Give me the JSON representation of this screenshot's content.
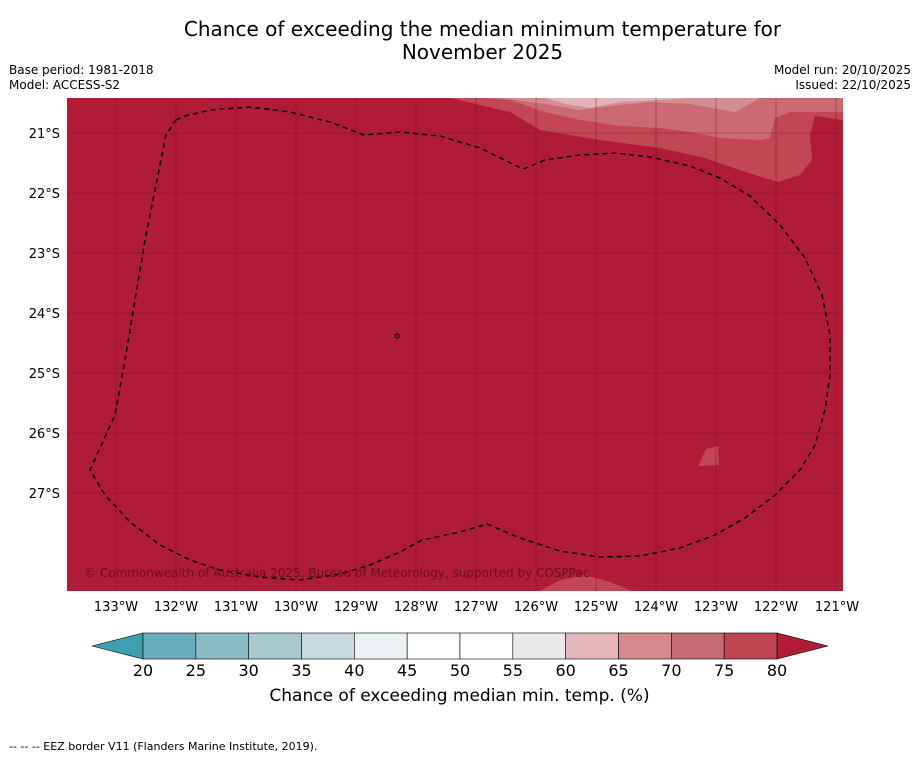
{
  "title_line1": "Chance of exceeding the median minimum temperature for",
  "title_line2": "November 2025",
  "base_period": "Base period: 1981-2018",
  "model": "Model: ACCESS-S2",
  "model_run": "Model run: 20/10/2025",
  "issued": "Issued: 22/10/2025",
  "copyright": "© Commonwealth of Australia 2025, Bureau of Meteorology, supported by COSPPac",
  "lat_labels": [
    "21°S",
    "22°S",
    "23°S",
    "24°S",
    "25°S",
    "26°S",
    "27°S"
  ],
  "lon_labels": [
    "133°W",
    "132°W",
    "131°W",
    "130°W",
    "129°W",
    "128°W",
    "127°W",
    "126°W",
    "125°W",
    "124°W",
    "123°W",
    "122°W",
    "121°W"
  ],
  "colorbar": {
    "ticks": [
      "20",
      "25",
      "30",
      "35",
      "40",
      "45",
      "50",
      "55",
      "60",
      "65",
      "70",
      "75",
      "80"
    ],
    "colors": [
      "#6aacbb",
      "#8bbac5",
      "#a8c9ce",
      "#c9dbde",
      "#ecf2f3",
      "#ffffff",
      "#ffffff",
      "#e9e9e9",
      "#e3b6bc",
      "#d5898f",
      "#c66b73",
      "#be4451"
    ],
    "low_extend_color": "#3f9fae",
    "high_extend_color": "#b01b37",
    "label": "Chance of exceeding median min. temp. (%)"
  },
  "colors": {
    "dominant": "#b01b37",
    "band_75_80": "#c24653",
    "band_70_75": "#cb6a72",
    "band_65_70": "#d68c93",
    "band_60_65": "#e1b3b8"
  },
  "footer": "--  --  -- EEZ border V11 (Flanders Marine Institute, 2019)."
}
